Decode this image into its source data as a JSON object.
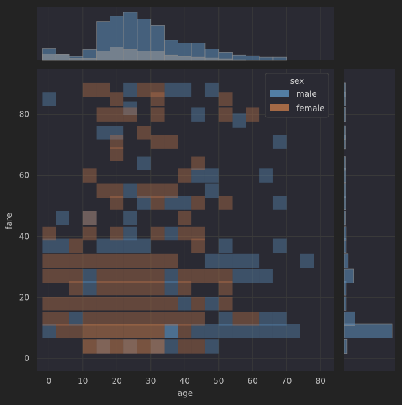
{
  "chart_data": {
    "type": "heatmap",
    "title": "",
    "xlabel": "age",
    "ylabel": "fare",
    "x_ticks": [
      0,
      10,
      20,
      30,
      40,
      50,
      60,
      70,
      80
    ],
    "y_ticks": [
      0,
      20,
      40,
      60,
      80
    ],
    "xlim": [
      -3.5,
      84
    ],
    "ylim": [
      -4,
      95
    ],
    "bin_width_age": 4,
    "bin_height_fare": 4.6,
    "grid": true,
    "legend": {
      "title": "sex",
      "placement": "top-right",
      "entries": [
        {
          "label": "male",
          "color": "#5b8db8"
        },
        {
          "label": "female",
          "color": "#b8744a"
        }
      ]
    },
    "colors": {
      "background": "#232323",
      "panel": "#2a2a33",
      "grid": "#3a3a3a",
      "male": "#5b8db8",
      "female": "#b8744a"
    },
    "cells": {
      "male": [
        [
          0,
          85,
          0.4
        ],
        [
          4,
          46,
          0.4
        ],
        [
          12,
          46,
          0.4
        ],
        [
          24,
          88,
          0.4
        ],
        [
          36,
          88,
          0.4
        ],
        [
          40,
          88,
          0.4
        ],
        [
          48,
          88,
          0.4
        ],
        [
          24,
          82,
          0.4
        ],
        [
          16,
          74,
          0.4
        ],
        [
          20,
          74,
          0.4
        ],
        [
          44,
          80,
          0.4
        ],
        [
          56,
          78,
          0.4
        ],
        [
          68,
          71,
          0.4
        ],
        [
          28,
          64,
          0.4
        ],
        [
          44,
          60,
          0.4
        ],
        [
          48,
          60,
          0.4
        ],
        [
          64,
          60,
          0.4
        ],
        [
          48,
          55,
          0.4
        ],
        [
          24,
          55,
          0.4
        ],
        [
          28,
          51,
          0.4
        ],
        [
          36,
          51,
          0.4
        ],
        [
          40,
          51,
          0.4
        ],
        [
          68,
          51,
          0.4
        ],
        [
          24,
          46,
          0.4
        ],
        [
          24,
          41,
          0.4
        ],
        [
          36,
          41,
          0.4
        ],
        [
          24,
          37,
          0.4
        ],
        [
          28,
          37,
          0.4
        ],
        [
          52,
          37,
          0.4
        ],
        [
          68,
          37,
          0.4
        ],
        [
          0,
          37,
          0.4
        ],
        [
          4,
          37,
          0.4
        ],
        [
          16,
          37,
          0.4
        ],
        [
          20,
          37,
          0.4
        ],
        [
          48,
          32,
          0.4
        ],
        [
          52,
          32,
          0.4
        ],
        [
          56,
          32,
          0.4
        ],
        [
          60,
          32,
          0.4
        ],
        [
          76,
          32,
          0.4
        ],
        [
          56,
          27,
          0.4
        ],
        [
          60,
          27,
          0.4
        ],
        [
          64,
          27,
          0.4
        ],
        [
          12,
          27,
          0.4
        ],
        [
          36,
          27,
          0.4
        ],
        [
          12,
          23,
          0.4
        ],
        [
          36,
          23,
          0.4
        ],
        [
          40,
          18,
          0.4
        ],
        [
          48,
          18,
          0.4
        ],
        [
          8,
          13,
          0.4
        ],
        [
          52,
          13,
          0.4
        ],
        [
          64,
          13,
          0.4
        ],
        [
          68,
          13,
          0.4
        ],
        [
          36,
          9,
          0.7
        ],
        [
          44,
          9,
          0.4
        ],
        [
          48,
          9,
          0.4
        ],
        [
          52,
          9,
          0.4
        ],
        [
          56,
          9,
          0.4
        ],
        [
          60,
          9,
          0.4
        ],
        [
          64,
          9,
          0.4
        ],
        [
          68,
          9,
          0.4
        ],
        [
          72,
          9,
          0.4
        ],
        [
          0,
          9,
          0.4
        ],
        [
          16,
          4,
          0.4
        ],
        [
          24,
          4,
          0.4
        ],
        [
          32,
          4,
          0.4
        ],
        [
          36,
          4,
          0.4
        ],
        [
          48,
          4,
          0.4
        ]
      ],
      "female": [
        [
          12,
          88,
          0.4
        ],
        [
          16,
          88,
          0.4
        ],
        [
          28,
          88,
          0.4
        ],
        [
          32,
          88,
          0.4
        ],
        [
          20,
          85,
          0.4
        ],
        [
          32,
          85,
          0.4
        ],
        [
          52,
          85,
          0.4
        ],
        [
          16,
          80,
          0.4
        ],
        [
          20,
          80,
          0.4
        ],
        [
          24,
          80,
          0.4
        ],
        [
          32,
          80,
          0.4
        ],
        [
          52,
          80,
          0.4
        ],
        [
          60,
          80,
          0.4
        ],
        [
          28,
          74,
          0.4
        ],
        [
          20,
          71,
          0.4
        ],
        [
          32,
          71,
          0.4
        ],
        [
          36,
          71,
          0.4
        ],
        [
          20,
          67,
          0.4
        ],
        [
          44,
          64,
          0.4
        ],
        [
          12,
          60,
          0.4
        ],
        [
          40,
          60,
          0.4
        ],
        [
          16,
          55,
          0.4
        ],
        [
          20,
          55,
          0.4
        ],
        [
          28,
          55,
          0.4
        ],
        [
          32,
          55,
          0.4
        ],
        [
          36,
          55,
          0.4
        ],
        [
          20,
          51,
          0.4
        ],
        [
          32,
          51,
          0.4
        ],
        [
          44,
          51,
          0.4
        ],
        [
          52,
          51,
          0.4
        ],
        [
          12,
          46,
          0.4
        ],
        [
          40,
          46,
          0.4
        ],
        [
          0,
          41,
          0.4
        ],
        [
          12,
          41,
          0.4
        ],
        [
          20,
          41,
          0.4
        ],
        [
          32,
          41,
          0.4
        ],
        [
          40,
          41,
          0.4
        ],
        [
          44,
          41,
          0.4
        ],
        [
          8,
          37,
          0.4
        ],
        [
          44,
          37,
          0.4
        ],
        [
          0,
          32,
          0.4
        ],
        [
          4,
          32,
          0.4
        ],
        [
          8,
          32,
          0.4
        ],
        [
          12,
          32,
          0.4
        ],
        [
          16,
          32,
          0.4
        ],
        [
          20,
          32,
          0.4
        ],
        [
          24,
          32,
          0.4
        ],
        [
          28,
          32,
          0.4
        ],
        [
          32,
          32,
          0.4
        ],
        [
          36,
          32,
          0.4
        ],
        [
          0,
          27,
          0.4
        ],
        [
          4,
          27,
          0.4
        ],
        [
          8,
          27,
          0.4
        ],
        [
          16,
          27,
          0.4
        ],
        [
          20,
          27,
          0.4
        ],
        [
          24,
          27,
          0.4
        ],
        [
          28,
          27,
          0.4
        ],
        [
          32,
          27,
          0.4
        ],
        [
          40,
          27,
          0.4
        ],
        [
          44,
          27,
          0.4
        ],
        [
          48,
          27,
          0.4
        ],
        [
          52,
          27,
          0.4
        ],
        [
          8,
          23,
          0.4
        ],
        [
          16,
          23,
          0.4
        ],
        [
          20,
          23,
          0.4
        ],
        [
          24,
          23,
          0.4
        ],
        [
          28,
          23,
          0.4
        ],
        [
          32,
          23,
          0.4
        ],
        [
          40,
          23,
          0.4
        ],
        [
          52,
          23,
          0.4
        ],
        [
          0,
          18,
          0.4
        ],
        [
          4,
          18,
          0.4
        ],
        [
          8,
          18,
          0.4
        ],
        [
          12,
          18,
          0.4
        ],
        [
          16,
          18,
          0.4
        ],
        [
          20,
          18,
          0.4
        ],
        [
          24,
          18,
          0.4
        ],
        [
          28,
          18,
          0.4
        ],
        [
          32,
          18,
          0.4
        ],
        [
          36,
          18,
          0.4
        ],
        [
          44,
          18,
          0.4
        ],
        [
          52,
          18,
          0.4
        ],
        [
          0,
          13,
          0.4
        ],
        [
          4,
          13,
          0.4
        ],
        [
          12,
          13,
          0.4
        ],
        [
          16,
          13,
          0.4
        ],
        [
          20,
          13,
          0.4
        ],
        [
          24,
          13,
          0.4
        ],
        [
          28,
          13,
          0.4
        ],
        [
          32,
          13,
          0.4
        ],
        [
          36,
          13,
          0.4
        ],
        [
          40,
          13,
          0.4
        ],
        [
          44,
          13,
          0.4
        ],
        [
          56,
          13,
          0.4
        ],
        [
          60,
          13,
          0.4
        ],
        [
          4,
          9,
          0.4
        ],
        [
          8,
          9,
          0.4
        ],
        [
          12,
          9,
          0.55
        ],
        [
          16,
          9,
          0.55
        ],
        [
          20,
          9,
          0.55
        ],
        [
          24,
          9,
          0.55
        ],
        [
          28,
          9,
          0.55
        ],
        [
          32,
          9,
          0.55
        ],
        [
          40,
          9,
          0.4
        ],
        [
          12,
          4,
          0.55
        ],
        [
          16,
          4,
          0.55
        ],
        [
          20,
          4,
          0.55
        ],
        [
          24,
          4,
          0.55
        ],
        [
          28,
          4,
          0.55
        ],
        [
          32,
          4,
          0.55
        ],
        [
          40,
          4,
          0.4
        ],
        [
          44,
          4,
          0.4
        ]
      ]
    },
    "marginal_age": {
      "bins": [
        0,
        4,
        8,
        12,
        16,
        20,
        24,
        28,
        32,
        36,
        40,
        44,
        48,
        52,
        56,
        60,
        64,
        68
      ],
      "total": [
        18,
        9,
        6,
        16,
        58,
        66,
        72,
        62,
        52,
        30,
        26,
        26,
        17,
        12,
        8,
        7,
        5,
        5
      ],
      "female": [
        10,
        9,
        3,
        3,
        14,
        20,
        16,
        14,
        14,
        8,
        6,
        5,
        4,
        2,
        1,
        0,
        0,
        0
      ]
    },
    "marginal_fare": {
      "bins": [
        4,
        9,
        13,
        18,
        23,
        27,
        32,
        37,
        41,
        46,
        51,
        55,
        60,
        64,
        71,
        74,
        80,
        85,
        88
      ],
      "total": [
        4,
        72,
        16,
        3,
        3,
        14,
        6,
        3,
        3,
        1,
        2,
        2,
        2,
        1,
        1,
        1,
        1,
        1,
        1
      ]
    }
  }
}
